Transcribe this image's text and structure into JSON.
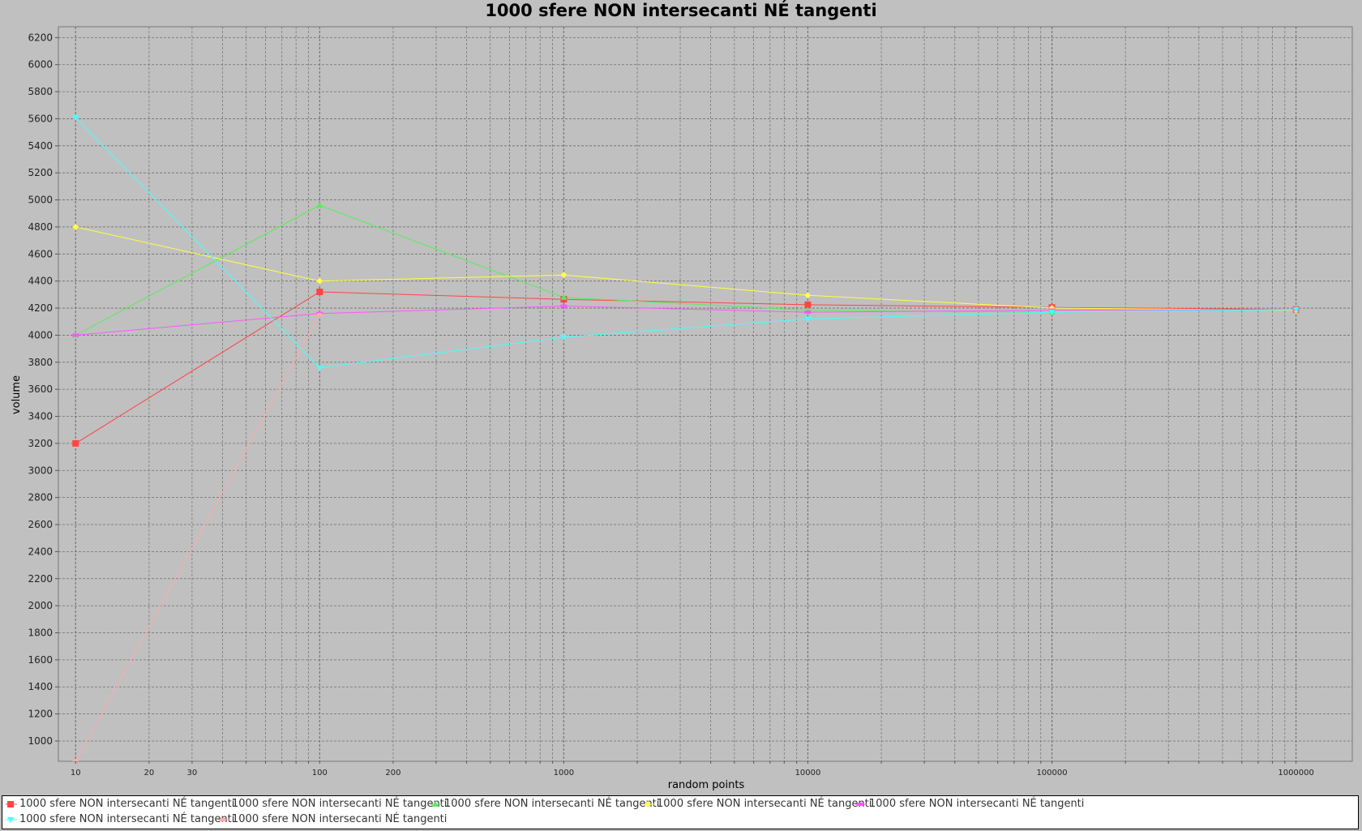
{
  "chart_data": {
    "type": "line",
    "title": "1000 sfere NON intersecanti NÉ tangenti",
    "xlabel": "random points",
    "ylabel": "volume",
    "x_scale": "log",
    "xlim": [
      8.5,
      1700000
    ],
    "ylim": [
      850,
      6280
    ],
    "x_ticks": [
      10,
      20,
      30,
      100,
      200,
      1000,
      10000,
      100000,
      1000000
    ],
    "y_ticks": [
      1000,
      1200,
      1400,
      1600,
      1800,
      2000,
      2200,
      2400,
      2600,
      2800,
      3000,
      3200,
      3400,
      3600,
      3800,
      4000,
      4200,
      4400,
      4600,
      4800,
      5000,
      5200,
      5400,
      5600,
      5800,
      6000,
      6200
    ],
    "grid": true,
    "legend_position": "bottom",
    "series": [
      {
        "name": "1000 sfere NON intersecanti NÉ tangenti",
        "color": "#ff4444",
        "marker": "square",
        "x": [
          10,
          100,
          1000,
          10000,
          100000,
          1000000
        ],
        "y": [
          3200,
          4320,
          4265,
          4225,
          4205,
          4190
        ]
      },
      {
        "name": "1000 sfere NON intersecanti NÉ tangenti",
        "color": "#5555ff",
        "marker": "circle",
        "x": [],
        "y": []
      },
      {
        "name": "1000 sfere NON intersecanti NÉ tangenti",
        "color": "#55ee55",
        "marker": "triangle-up",
        "x": [
          10,
          100,
          1000,
          10000,
          100000,
          1000000
        ],
        "y": [
          4000,
          4960,
          4280,
          4185,
          4170,
          4190
        ]
      },
      {
        "name": "1000 sfere NON intersecanti NÉ tangenti",
        "color": "#ffff44",
        "marker": "diamond",
        "x": [
          10,
          100,
          1000,
          10000,
          100000,
          1000000
        ],
        "y": [
          4800,
          4400,
          4445,
          4295,
          4200,
          4185
        ]
      },
      {
        "name": "1000 sfere NON intersecanti NÉ tangenti",
        "color": "#ff55ff",
        "marker": "rect",
        "x": [
          10,
          100,
          1000,
          10000,
          100000,
          1000000
        ],
        "y": [
          4000,
          4160,
          4215,
          4170,
          4185,
          4190
        ]
      },
      {
        "name": "1000 sfere NON intersecanti NÉ tangenti",
        "color": "#44ffff",
        "marker": "triangle-down",
        "x": [
          10,
          100,
          1000,
          10000,
          100000,
          1000000
        ],
        "y": [
          5610,
          3760,
          3985,
          4120,
          4170,
          4190
        ]
      },
      {
        "name": "1000 sfere NON intersecanti NÉ tangenti",
        "color": "#ffaaaa",
        "marker": "ellipse",
        "x": [
          10,
          100
        ],
        "y": [
          850,
          4150
        ]
      }
    ]
  }
}
